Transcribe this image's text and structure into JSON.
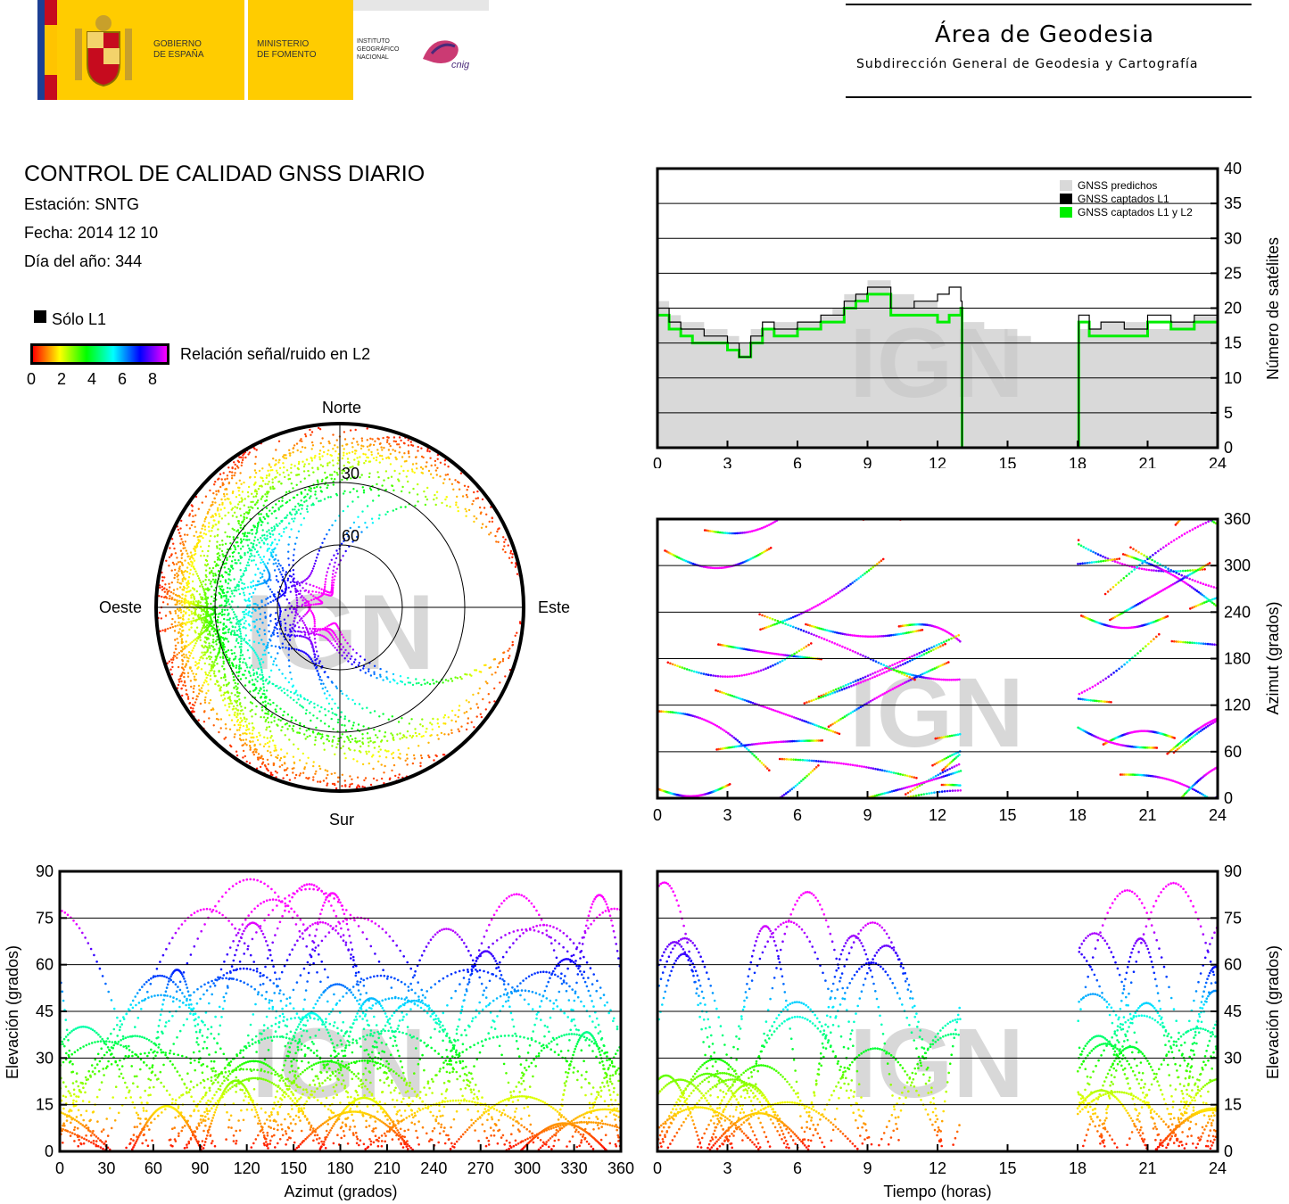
{
  "header": {
    "gov_line1": "GOBIERNO",
    "gov_line2": "DE ESPAÑA",
    "min_line1": "MINISTERIO",
    "min_line2": "DE FOMENTO",
    "ign_line1": "INSTITUTO",
    "ign_line2": "GEOGRÁFICO",
    "ign_line3": "NACIONAL",
    "cnig": "cnig",
    "area_title": "Área de Geodesia",
    "area_subtitle": "Subdirección General de Geodesia y Cartografía"
  },
  "info": {
    "title": "CONTROL DE CALIDAD GNSS DIARIO",
    "station": "Estación: SNTG",
    "date": "Fecha: 2014 12 10",
    "doy": "Día del año: 344",
    "only_l1": "Sólo L1",
    "snr_label": "Relación señal/ruido en L2",
    "snr_ticks": [
      "0",
      "2",
      "4",
      "6",
      "8"
    ]
  },
  "colors": {
    "predicted": "#d9d9d9",
    "l1": "#000000",
    "l1l2": "#00ee00",
    "snr_scale": [
      "#ff0000",
      "#ffff00",
      "#00ff00",
      "#00ffff",
      "#0000ff",
      "#ff00ff"
    ],
    "watermark": "#c8c8c8"
  },
  "watermark": "IGN",
  "chart_data": [
    {
      "type": "polar-sky",
      "labels": {
        "north": "Norte",
        "south": "Sur",
        "west": "Oeste",
        "east": "Este"
      },
      "rings": [
        "30",
        "60"
      ],
      "note": "sky tracks colored by SNR"
    },
    {
      "type": "step-line",
      "ylabel": "Número de satélites",
      "xlim": [
        0,
        24
      ],
      "ylim": [
        0,
        40
      ],
      "xticks": [
        "0",
        "3",
        "6",
        "9",
        "12",
        "15",
        "18",
        "21",
        "24"
      ],
      "yticks": [
        "0",
        "5",
        "10",
        "15",
        "20",
        "25",
        "30",
        "35",
        "40"
      ],
      "legend": [
        "GNSS predichos",
        "GNSS captados L1",
        "GNSS captados L1 y L2"
      ],
      "legend_position": "top-right",
      "series": [
        {
          "name": "GNSS predichos",
          "x": [
            0,
            0.5,
            1,
            2,
            3,
            3.5,
            4,
            5,
            6,
            7,
            7.5,
            8,
            9,
            10,
            11,
            12,
            13,
            14,
            15,
            16,
            17,
            18,
            19,
            20,
            21,
            22,
            23,
            24
          ],
          "values": [
            21,
            19,
            18,
            17,
            16,
            15,
            17,
            18,
            18,
            19,
            20,
            22,
            24,
            22,
            21,
            20,
            18,
            17,
            16,
            15,
            15,
            17,
            18,
            18,
            17,
            18,
            19,
            20
          ]
        },
        {
          "name": "GNSS captados L1",
          "x": [
            0,
            0.5,
            1,
            1.5,
            2,
            3,
            3.5,
            4,
            4.5,
            5,
            6,
            7,
            8,
            8.5,
            9,
            10,
            11,
            12,
            12.5,
            13,
            13.05,
            18,
            18.05,
            18.5,
            19,
            20,
            21,
            22,
            23,
            24
          ],
          "values": [
            20,
            18,
            17,
            17,
            16,
            15,
            13,
            16,
            18,
            17,
            18,
            19,
            21,
            22,
            23,
            20,
            21,
            22,
            23,
            21,
            0,
            0,
            19,
            17,
            18,
            17,
            19,
            18,
            19,
            20
          ]
        },
        {
          "name": "GNSS captados L1 y L2",
          "x": [
            0,
            0.5,
            1,
            1.5,
            2,
            3,
            3.5,
            4,
            4.5,
            5,
            6,
            7,
            8,
            8.5,
            9,
            10,
            11,
            12,
            12.5,
            13,
            13.05,
            18,
            18.05,
            18.5,
            19,
            20,
            21,
            22,
            23,
            24
          ],
          "values": [
            19,
            17,
            16,
            15,
            15,
            14,
            13,
            15,
            17,
            16,
            17,
            18,
            20,
            21,
            22,
            19,
            19,
            18,
            19,
            20,
            0,
            0,
            18,
            16,
            16,
            16,
            18,
            17,
            18,
            19
          ]
        }
      ]
    },
    {
      "type": "scatter",
      "ylabel": "Azimut (grados)",
      "xlim": [
        0,
        24
      ],
      "ylim": [
        0,
        360
      ],
      "xticks": [
        "0",
        "3",
        "6",
        "9",
        "12",
        "15",
        "18",
        "21",
        "24"
      ],
      "yticks": [
        "0",
        "60",
        "120",
        "180",
        "240",
        "300",
        "360"
      ],
      "gaps": [
        [
          13,
          18
        ]
      ]
    },
    {
      "type": "scatter",
      "xlabel": "Azimut (grados)",
      "ylabel": "Elevación (grados)",
      "xlim": [
        0,
        360
      ],
      "ylim": [
        0,
        90
      ],
      "xticks": [
        "0",
        "30",
        "60",
        "90",
        "120",
        "150",
        "180",
        "210",
        "240",
        "270",
        "300",
        "330",
        "360"
      ],
      "yticks": [
        "0",
        "15",
        "30",
        "45",
        "60",
        "75",
        "90"
      ]
    },
    {
      "type": "scatter",
      "xlabel": "Tiempo (horas)",
      "ylabel": "Elevación (grados)",
      "xlim": [
        0,
        24
      ],
      "ylim": [
        0,
        90
      ],
      "xticks": [
        "0",
        "3",
        "6",
        "9",
        "12",
        "15",
        "18",
        "21",
        "24"
      ],
      "yticks": [
        "0",
        "15",
        "30",
        "45",
        "60",
        "75",
        "90"
      ],
      "gaps": [
        [
          13,
          18
        ]
      ]
    }
  ]
}
